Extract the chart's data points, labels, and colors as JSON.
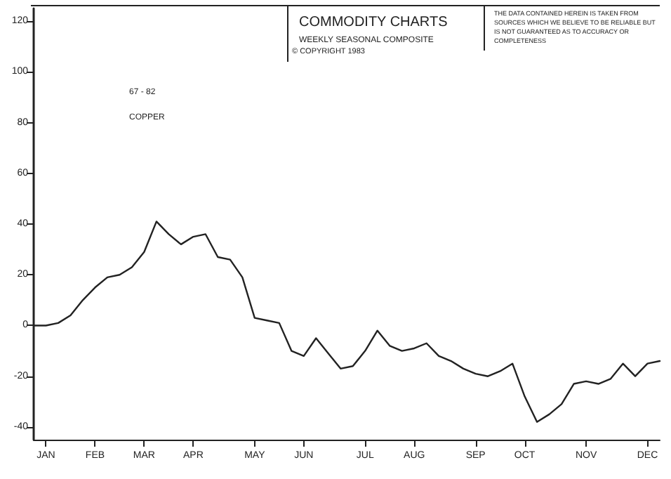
{
  "chart_data": {
    "type": "line",
    "title": "COMMODITY CHARTS",
    "subtitle": "WEEKLY SEASONAL COMPOSITE",
    "annotations": [
      "© COPYRIGHT 1983",
      "THE DATA CONTAINED HEREIN IS TAKEN FROM SOURCES WHICH WE BELIEVE TO BE RELIABLE BUT IS NOT GUARANTEED AS TO ACCURACY OR COMPLETENESS",
      "67 - 82",
      "COPPER"
    ],
    "categories": [
      null,
      "JAN",
      null,
      null,
      null,
      "FEB",
      null,
      null,
      null,
      "MAR",
      null,
      null,
      null,
      "APR",
      null,
      null,
      null,
      null,
      "MAY",
      null,
      null,
      null,
      "JUN",
      null,
      null,
      null,
      null,
      "JUL",
      null,
      null,
      null,
      "AUG",
      null,
      null,
      null,
      null,
      "SEP",
      null,
      null,
      null,
      "OCT",
      null,
      null,
      null,
      null,
      "NOV",
      null,
      null,
      null,
      null,
      "DEC",
      null
    ],
    "series": [
      {
        "color": "#222222",
        "values": [
          0,
          0,
          1,
          4,
          10,
          15,
          19,
          20,
          23,
          29,
          41,
          36,
          32,
          35,
          36,
          27,
          26,
          19,
          3,
          2,
          1,
          -10,
          -12,
          -5,
          -11,
          -17,
          -16,
          -10,
          -2,
          -8,
          -10,
          -9,
          -7,
          -12,
          -14,
          -17,
          -19,
          -20,
          -18,
          -15,
          -28,
          -38,
          -35,
          -31,
          -23,
          -22,
          -23,
          -21,
          -15,
          -20,
          -15,
          -14
        ]
      }
    ],
    "ylim": [
      -45,
      125
    ],
    "yticks": [
      -40,
      -20,
      0,
      20,
      40,
      60,
      80,
      100,
      120
    ],
    "grid": false,
    "marker": "none",
    "line_style": "solid"
  }
}
